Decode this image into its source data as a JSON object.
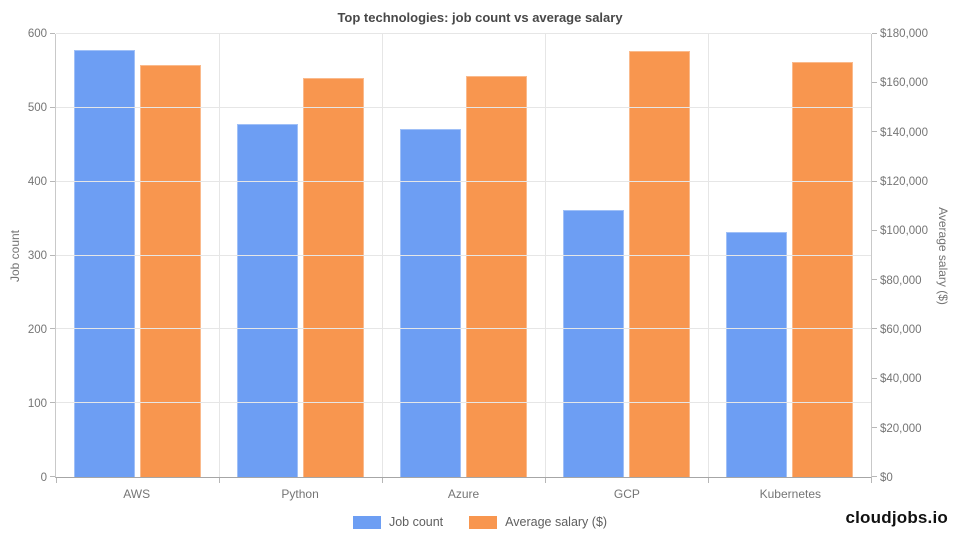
{
  "title": "Top technologies: job count vs average salary",
  "branding": {
    "site_name": "cloudjobs.io"
  },
  "legend": {
    "items": [
      {
        "label": "Job count",
        "color": "#6D9EF3"
      },
      {
        "label": "Average salary ($)",
        "color": "#F8964F"
      }
    ]
  },
  "chart_data": {
    "type": "bar",
    "title": "Top technologies: job count vs average salary",
    "categories": [
      "AWS",
      "Python",
      "Azure",
      "GCP",
      "Kubernetes"
    ],
    "series": [
      {
        "name": "Job count",
        "axis": "left",
        "color": "#6D9EF3",
        "values": [
          578,
          478,
          471,
          362,
          332
        ]
      },
      {
        "name": "Average salary ($)",
        "axis": "right",
        "color": "#F8964F",
        "values": [
          167500,
          162000,
          163000,
          173000,
          168500
        ]
      }
    ],
    "axes": {
      "left": {
        "label": "Job count",
        "min": 0,
        "max": 600,
        "tick_labels": [
          "0",
          "100",
          "200",
          "300",
          "400",
          "500",
          "600"
        ]
      },
      "right": {
        "label": "Average salary ($)",
        "min": 0,
        "max": 180000,
        "tick_labels": [
          "$0",
          "$20,000",
          "$40,000",
          "$60,000",
          "$80,000",
          "$100,000",
          "$120,000",
          "$140,000",
          "$160,000",
          "$180,000"
        ]
      }
    },
    "grid": true,
    "legend_position": "bottom"
  }
}
